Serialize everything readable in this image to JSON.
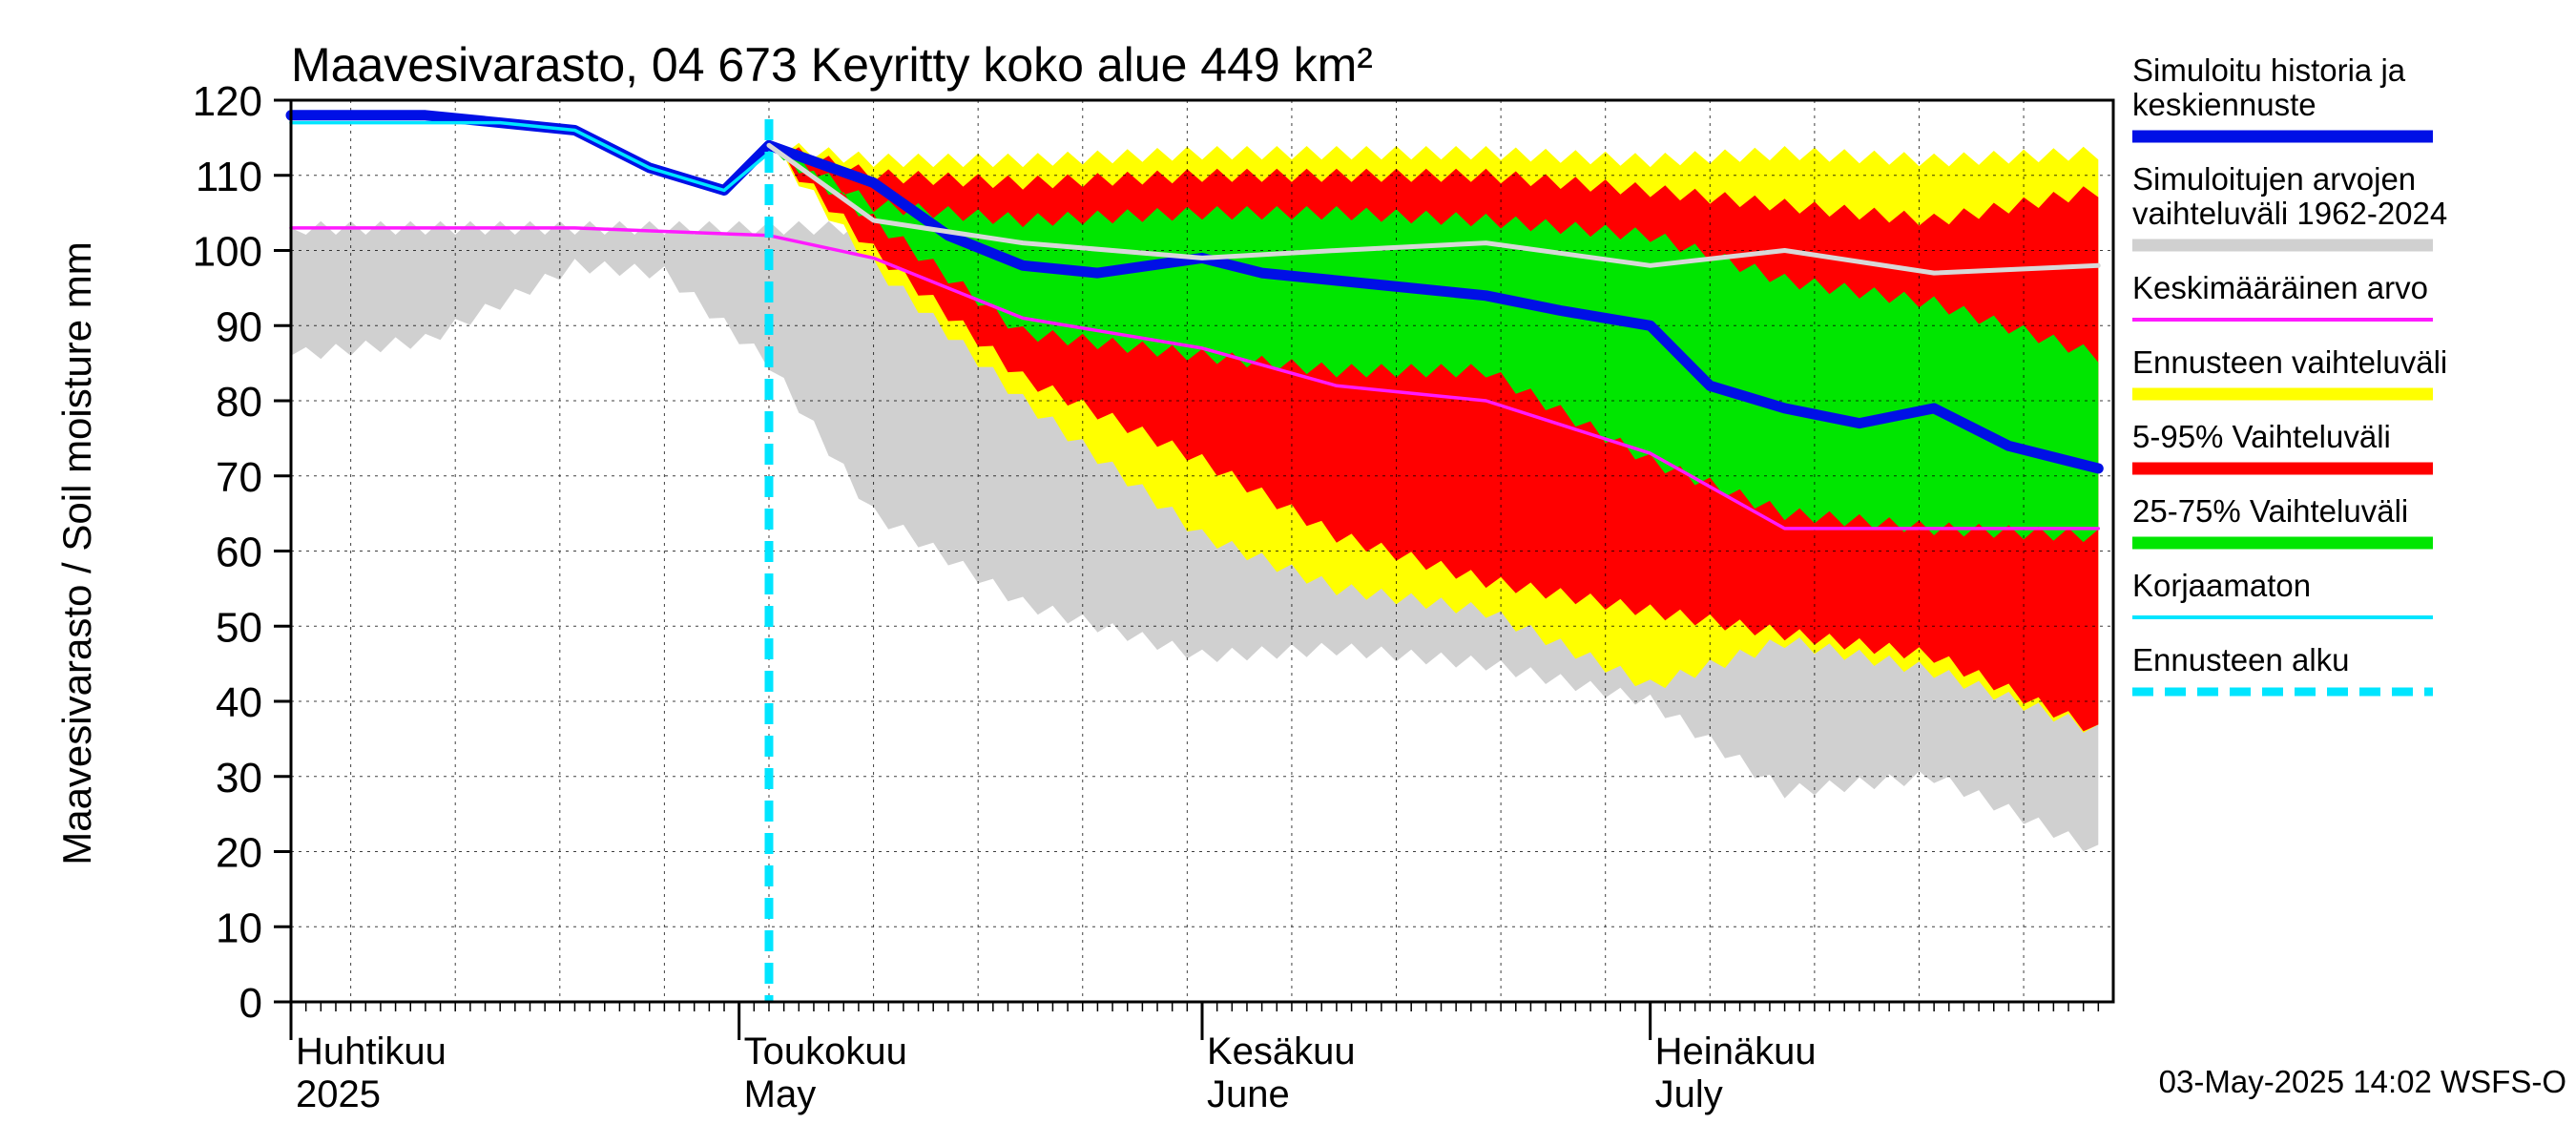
{
  "chart_data": {
    "type": "area",
    "title": "Maavesivarasto, 04 673 Keyritty koko alue 449 km²",
    "ylabel": "Maavesivarasto / Soil moisture   mm",
    "ylim": [
      0,
      120
    ],
    "yticks": [
      0,
      10,
      20,
      30,
      40,
      50,
      60,
      70,
      80,
      90,
      100,
      110,
      120
    ],
    "xlim": [
      "2025-04-01",
      "2025-07-31"
    ],
    "forecast_start": "2025-05-03",
    "months": [
      {
        "date": "2025-04-01",
        "fi": "Huhtikuu",
        "en": "2025"
      },
      {
        "date": "2025-05-01",
        "fi": "Toukokuu",
        "en": "May"
      },
      {
        "date": "2025-06-01",
        "fi": "Kesäkuu",
        "en": "June"
      },
      {
        "date": "2025-07-01",
        "fi": "Heinäkuu",
        "en": "July"
      }
    ],
    "grid": true,
    "legend_position": "right",
    "legend": [
      {
        "label": "Simuloitu historia ja\nkeskiennuste",
        "color": "#0010e6",
        "style": "thick"
      },
      {
        "label": "Simuloitujen arvojen\nvaihteluväli 1962-2024",
        "color": "#d0d0d0",
        "style": "thick"
      },
      {
        "label": "Keskimääräinen arvo",
        "color": "#ff1aff",
        "style": "thin"
      },
      {
        "label": "Ennusteen vaihteluväli",
        "color": "#ffff00",
        "style": "thick"
      },
      {
        "label": "5-95% Vaihteluväli",
        "color": "#ff0000",
        "style": "thick"
      },
      {
        "label": "25-75% Vaihteluväli",
        "color": "#00e600",
        "style": "thick"
      },
      {
        "label": "Korjaamaton",
        "color": "#00e5ff",
        "style": "thin"
      },
      {
        "label": "Ennusteen alku",
        "color": "#00e5ff",
        "style": "dashed"
      }
    ],
    "historical_range": {
      "name": "Simuloitujen arvojen vaihteluväli 1962-2024",
      "color": "#d0d0d0",
      "x": [
        "2025-04-01",
        "2025-04-10",
        "2025-04-20",
        "2025-04-26",
        "2025-05-03",
        "2025-05-10",
        "2025-05-20",
        "2025-06-01",
        "2025-06-10",
        "2025-06-20",
        "2025-07-01",
        "2025-07-10",
        "2025-07-20",
        "2025-07-31"
      ],
      "upper": [
        103,
        103,
        103,
        103,
        103,
        103,
        103,
        103,
        103,
        103,
        103,
        103,
        103,
        103
      ],
      "lower": [
        86,
        88,
        98,
        97,
        85,
        65,
        53,
        46,
        47,
        45,
        40,
        28,
        30,
        20
      ]
    },
    "forecast_range": {
      "name": "Ennusteen vaihteluväli",
      "color": "#ffff00",
      "x": [
        "2025-05-03",
        "2025-05-10",
        "2025-05-20",
        "2025-06-01",
        "2025-06-10",
        "2025-06-20",
        "2025-07-01",
        "2025-07-10",
        "2025-07-20",
        "2025-07-31"
      ],
      "upper": [
        114,
        112,
        112,
        113,
        113,
        113,
        112,
        113,
        112,
        113
      ],
      "lower": [
        114,
        98,
        80,
        62,
        55,
        52,
        42,
        48,
        44,
        36
      ]
    },
    "range_5_95": {
      "name": "5-95% Vaihteluväli",
      "color": "#ff0000",
      "x": [
        "2025-05-03",
        "2025-05-10",
        "2025-05-20",
        "2025-06-01",
        "2025-06-10",
        "2025-06-20",
        "2025-07-01",
        "2025-07-10",
        "2025-07-20",
        "2025-07-31"
      ],
      "upper": [
        114,
        110,
        109,
        110,
        110,
        110,
        108,
        106,
        104,
        108
      ],
      "lower": [
        114,
        100,
        83,
        72,
        62,
        56,
        52,
        49,
        46,
        36
      ]
    },
    "range_25_75": {
      "name": "25-75% Vaihteluväli",
      "color": "#00e600",
      "x": [
        "2025-05-03",
        "2025-05-10",
        "2025-05-20",
        "2025-06-01",
        "2025-06-10",
        "2025-06-20",
        "2025-07-01",
        "2025-07-10",
        "2025-07-20",
        "2025-07-31"
      ],
      "upper": [
        114,
        106,
        104,
        105,
        105,
        104,
        102,
        96,
        93,
        86
      ],
      "lower": [
        114,
        104,
        89,
        86,
        84,
        84,
        72,
        65,
        63,
        62
      ]
    },
    "series": [
      {
        "name": "Simuloitu historia ja keskiennuste",
        "color": "#0010e6",
        "x": [
          "2025-04-01",
          "2025-04-10",
          "2025-04-15",
          "2025-04-20",
          "2025-04-25",
          "2025-04-30",
          "2025-05-03",
          "2025-05-10",
          "2025-05-15",
          "2025-05-20",
          "2025-05-25",
          "2025-06-01",
          "2025-06-05",
          "2025-06-10",
          "2025-06-15",
          "2025-06-20",
          "2025-06-25",
          "2025-07-01",
          "2025-07-05",
          "2025-07-10",
          "2025-07-15",
          "2025-07-20",
          "2025-07-25",
          "2025-07-31"
        ],
        "values": [
          118,
          118,
          117,
          116,
          111,
          108,
          114,
          109,
          102,
          98,
          97,
          99,
          97,
          96,
          95,
          94,
          92,
          90,
          82,
          79,
          77,
          79,
          74,
          71
        ]
      },
      {
        "name": "Keskimääräinen arvo",
        "color": "#ff1aff",
        "x": [
          "2025-04-01",
          "2025-04-20",
          "2025-05-03",
          "2025-05-10",
          "2025-05-20",
          "2025-06-01",
          "2025-06-10",
          "2025-06-20",
          "2025-07-01",
          "2025-07-10",
          "2025-07-20",
          "2025-07-31"
        ],
        "values": [
          103,
          103,
          102,
          99,
          91,
          87,
          82,
          80,
          73,
          63,
          63,
          63
        ]
      },
      {
        "name": "median_reference",
        "color": "#d8d8d8",
        "x": [
          "2025-05-03",
          "2025-05-10",
          "2025-05-20",
          "2025-06-01",
          "2025-06-10",
          "2025-06-20",
          "2025-07-01",
          "2025-07-10",
          "2025-07-20",
          "2025-07-31"
        ],
        "values": [
          114,
          104,
          101,
          99,
          100,
          101,
          98,
          100,
          97,
          98
        ]
      },
      {
        "name": "Korjaamaton",
        "color": "#00e5ff",
        "x": [
          "2025-04-01",
          "2025-04-10",
          "2025-04-15",
          "2025-04-20",
          "2025-04-25",
          "2025-04-30",
          "2025-05-03"
        ],
        "values": [
          117,
          117,
          117,
          116,
          111,
          108,
          113
        ]
      }
    ],
    "timestamp": "03-May-2025 14:02 WSFS-O"
  }
}
